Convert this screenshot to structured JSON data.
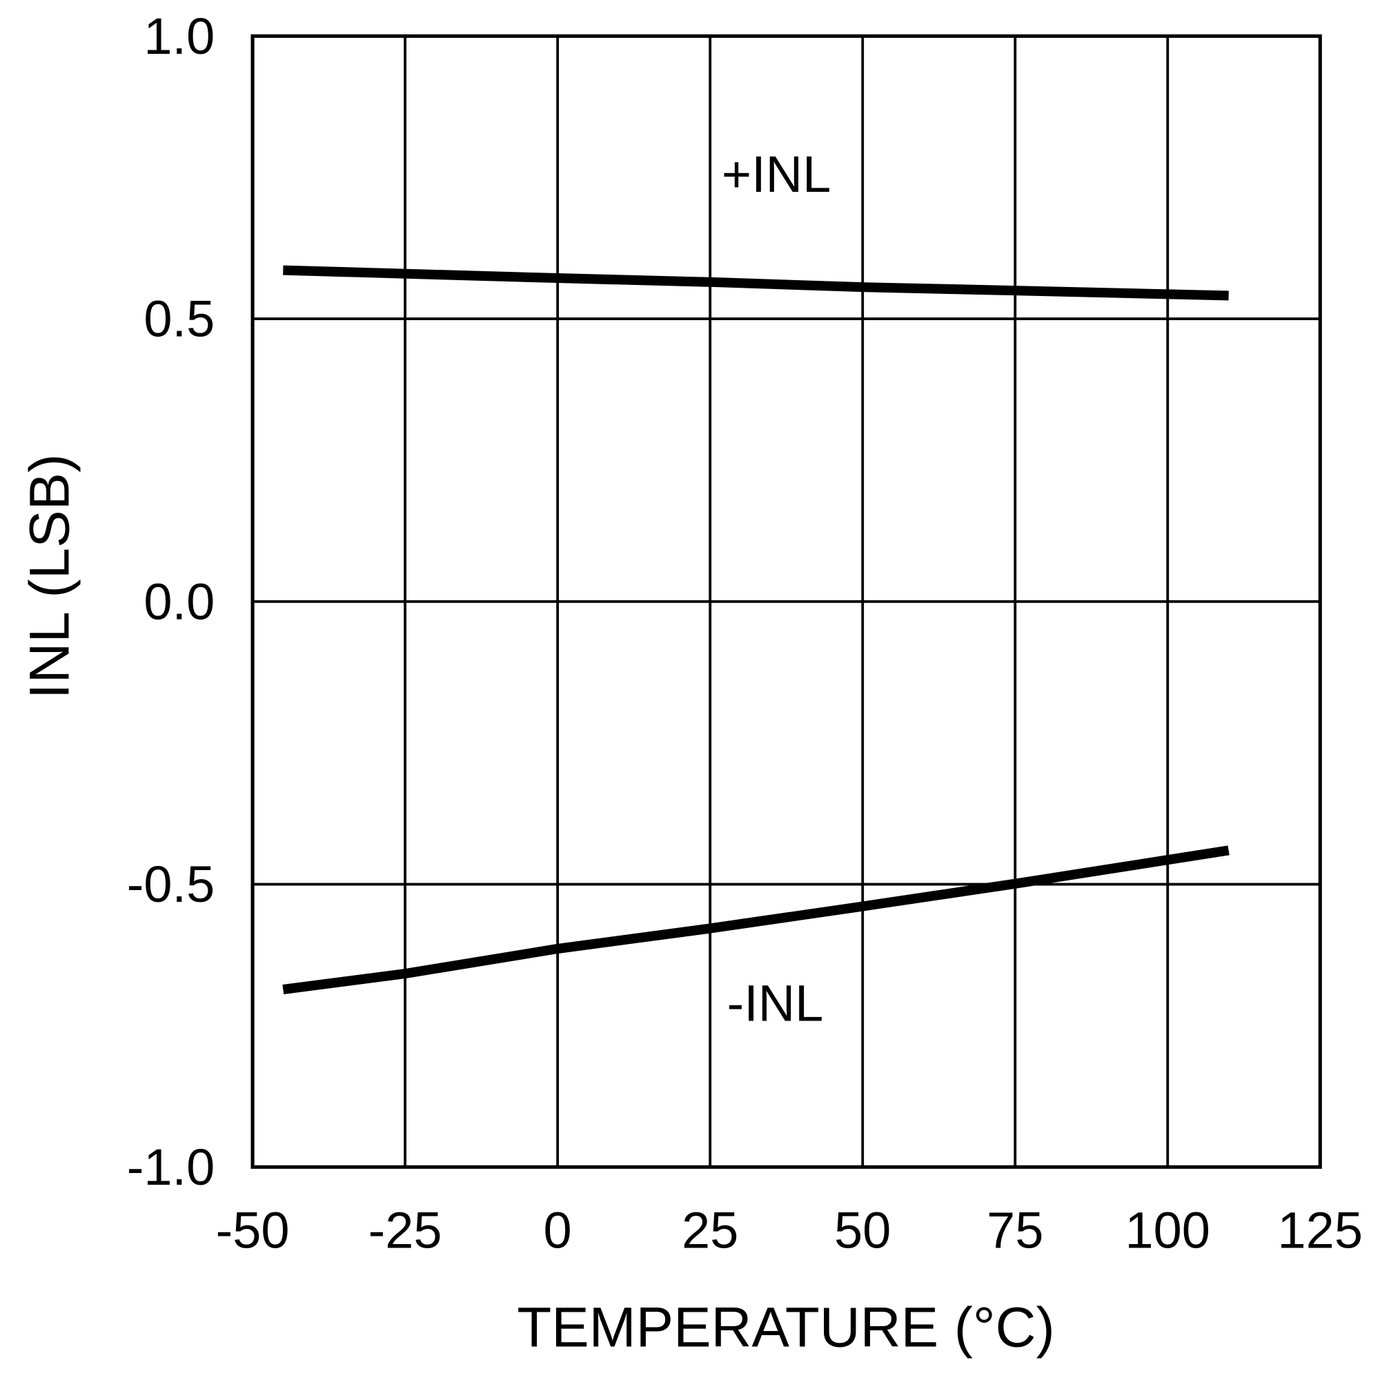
{
  "chart_data": {
    "type": "line",
    "title": "",
    "xlabel": "TEMPERATURE (°C)",
    "ylabel": "INL (LSB)",
    "xlim": [
      -50,
      125
    ],
    "ylim": [
      -1.0,
      1.0
    ],
    "xticks": [
      "-50",
      "-25",
      "0",
      "25",
      "50",
      "75",
      "100",
      "125"
    ],
    "yticks": [
      "1.0",
      "0.5",
      "0.0",
      "-0.5",
      "-1.0"
    ],
    "grid": true,
    "series": [
      {
        "name": "+INL",
        "x": [
          -45,
          0,
          25,
          50,
          75,
          110
        ],
        "y": [
          0.586,
          0.572,
          0.565,
          0.556,
          0.55,
          0.541
        ]
      },
      {
        "name": "-INL",
        "x": [
          -45,
          -25,
          0,
          25,
          50,
          75,
          110
        ],
        "y": [
          -0.686,
          -0.658,
          -0.614,
          -0.578,
          -0.539,
          -0.499,
          -0.44
        ]
      }
    ],
    "annotations": [
      "+INL",
      "-INL"
    ],
    "line_color": "#000000"
  }
}
